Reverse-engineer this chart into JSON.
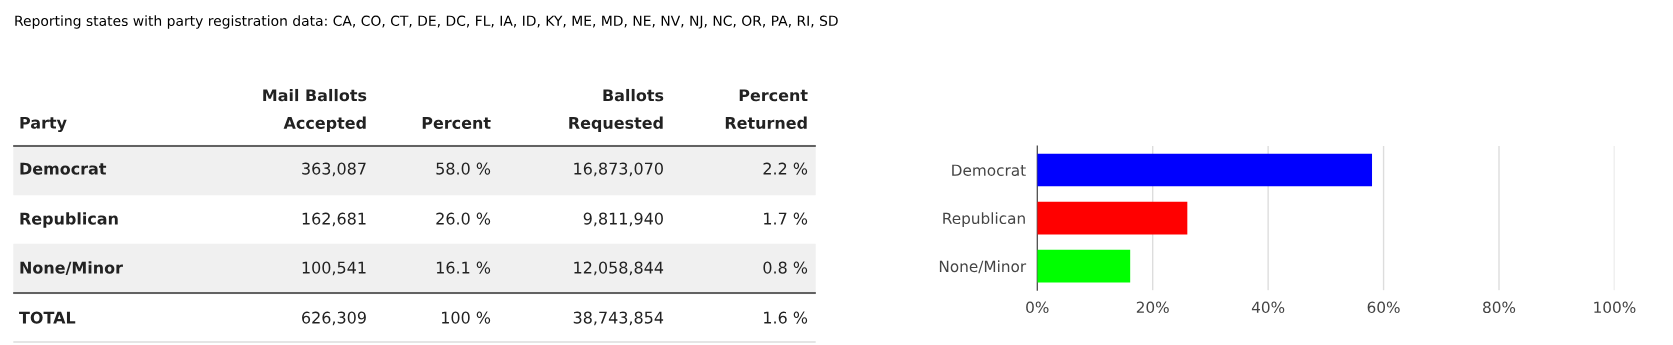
{
  "chart_data": {
    "type": "bar",
    "orientation": "horizontal",
    "title": "Reporting states with party registration data: CA, CO, CT, DE, DC, FL, IA, ID, KY, ME, MD, NE, NV, NJ, NC, OR, PA, RI, SD",
    "categories": [
      "Democrat",
      "Republican",
      "None/Minor"
    ],
    "series": [
      {
        "values": [
          58.0,
          26.0,
          16.1
        ],
        "colors": [
          "#0000ff",
          "#ff0000",
          "#00ff00"
        ]
      }
    ],
    "xlim": [
      0,
      100
    ],
    "xticks": [
      {
        "value": 0,
        "label": "0%"
      },
      {
        "value": 20,
        "label": "20%"
      },
      {
        "value": 40,
        "label": "40%"
      },
      {
        "value": 60,
        "label": "60%"
      },
      {
        "value": 80,
        "label": "80%"
      },
      {
        "value": 100,
        "label": "100%"
      }
    ],
    "grid": "x",
    "legend": false,
    "annotations": [
      "Party",
      "Mail Ballots\nAccepted",
      "Percent",
      "Ballots\nRequested",
      "Percent\nReturned",
      "Democrat",
      "363,087",
      "58.0 %",
      "16,873,070",
      "2.2 %",
      "Republican",
      "162,681",
      "26.0 %",
      "9,811,940",
      "1.7 %",
      "None/Minor",
      "100,541",
      "16.1 %",
      "12,058,844",
      "0.8 %",
      "TOTAL",
      "626,309",
      "100 %",
      "38,743,854",
      "1.6 %"
    ]
  }
}
